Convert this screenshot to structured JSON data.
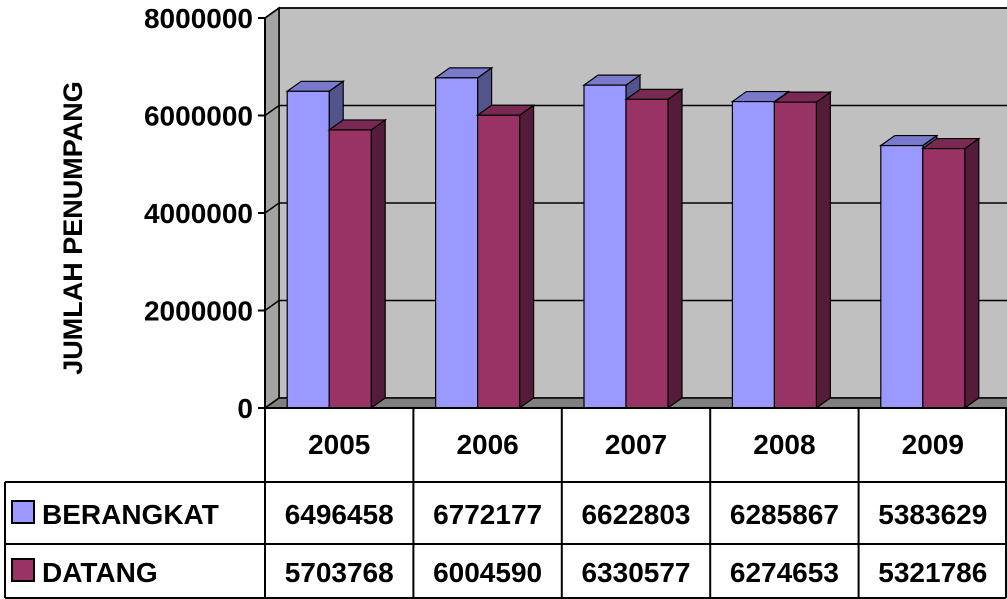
{
  "chart_data": {
    "type": "bar",
    "categories": [
      "2005",
      "2006",
      "2007",
      "2008",
      "2009"
    ],
    "series": [
      {
        "name": "BERANGKAT",
        "values": [
          6496458,
          6772177,
          6622803,
          6285867,
          5383629
        ]
      },
      {
        "name": "DATANG",
        "values": [
          5703768,
          6004590,
          6330577,
          6274653,
          5321786
        ]
      }
    ],
    "title": "",
    "xlabel": "",
    "ylabel": "JUMLAH PENUMPANG",
    "ylim": [
      0,
      8000000
    ],
    "yticks": [
      "0",
      "2000000",
      "4000000",
      "6000000",
      "8000000"
    ],
    "grid": true,
    "legend": "data-table-left",
    "data_table": true,
    "colors": {
      "BERANGKAT": "#9999ff",
      "DATANG": "#993366",
      "wall": "#c0c0c0",
      "floor": "#808080"
    }
  }
}
